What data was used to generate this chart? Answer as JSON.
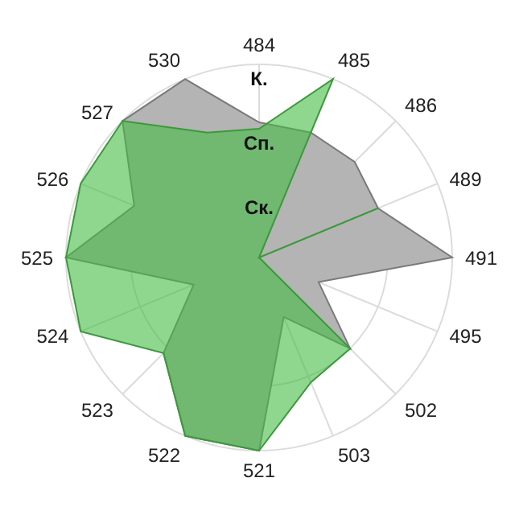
{
  "chart_data": {
    "type": "radar",
    "categories": [
      "484",
      "485",
      "486",
      "489",
      "491",
      "495",
      "502",
      "503",
      "521",
      "522",
      "523",
      "524",
      "525",
      "526",
      "527",
      "530"
    ],
    "ylim": [
      0,
      3
    ],
    "yticks": [
      {
        "value": 1,
        "label": "Ск."
      },
      {
        "value": 2,
        "label": "Сп."
      },
      {
        "value": 3,
        "label": "К."
      }
    ],
    "grid": true,
    "series": [
      {
        "color": "#b4b4b4",
        "values": [
          2.1,
          2.1,
          2.1,
          2.0,
          3.0,
          1.0,
          2.0,
          1.0,
          3.0,
          3.0,
          2.1,
          1.1,
          3.0,
          2.1,
          3.0,
          3.0
        ]
      },
      {
        "color": "#44bb44",
        "values": [
          2.0,
          3.0,
          0,
          2.0,
          0,
          0,
          2.0,
          2.1,
          3.0,
          3.0,
          2.1,
          3.0,
          3.0,
          3.0,
          3.0,
          2.1
        ]
      }
    ]
  }
}
